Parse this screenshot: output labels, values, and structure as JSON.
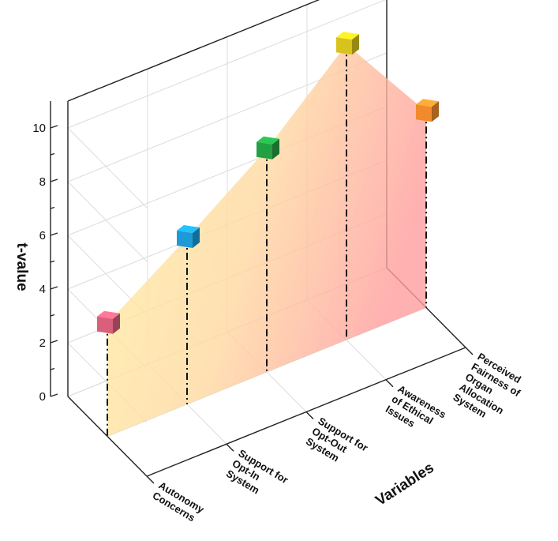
{
  "chart_data": {
    "type": "area",
    "title": "",
    "xlabel": "Variables",
    "ylabel": "t-value",
    "ylim": [
      0,
      11
    ],
    "yticks": [
      "0",
      "2",
      "4",
      "6",
      "8",
      "10"
    ],
    "categories": [
      [
        "Autonomy",
        "Concerns"
      ],
      [
        "Support for",
        "Opt-In",
        "System"
      ],
      [
        "Support for",
        "Opt-Out",
        "System"
      ],
      [
        "Awareness",
        "of Ethical",
        "Issues"
      ],
      [
        "Perceived",
        "Fairness of",
        "Organ",
        "Allocation",
        "System"
      ]
    ],
    "values": [
      4.2,
      6.2,
      8.3,
      11.0,
      7.3
    ],
    "marker_colors": [
      "#d9607a",
      "#1c9bd8",
      "#23a043",
      "#d8c21d",
      "#f08a2c"
    ],
    "fill_gradient": [
      "#fff2a8",
      "#ffa6a6"
    ],
    "grid": true
  }
}
